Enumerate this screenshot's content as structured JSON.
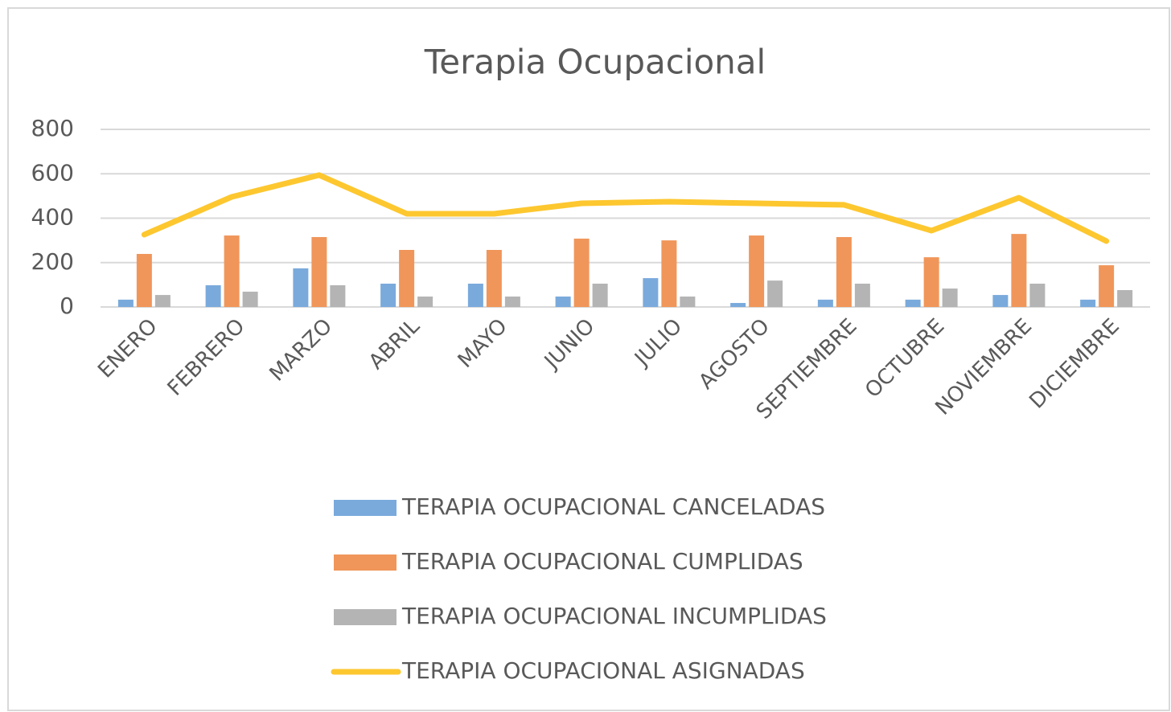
{
  "chart_data": {
    "type": "bar",
    "title": "Terapia Ocupacional",
    "categories": [
      "ENERO",
      "FEBRERO",
      "MARZO",
      "ABRIL",
      "MAYO",
      "JUNIO",
      "JULIO",
      "AGOSTO",
      "SEPTIEMBRE",
      "OCTUBRE",
      "NOVIEMBRE",
      "DICIEMBRE"
    ],
    "series": [
      {
        "name": "TERAPIA OCUPACIONAL CANCELADAS",
        "color": "#7aaadc",
        "values": [
          33,
          98,
          174,
          105,
          105,
          47,
          130,
          18,
          33,
          33,
          54,
          33
        ]
      },
      {
        "name": "TERAPIA OCUPACIONAL CUMPLIDAS",
        "color": "#f0965a",
        "values": [
          239,
          322,
          315,
          257,
          257,
          308,
          300,
          322,
          315,
          224,
          329,
          188
        ]
      },
      {
        "name": "TERAPIA OCUPACIONAL INCUMPLIDAS",
        "color": "#b4b4b4",
        "values": [
          54,
          69,
          98,
          47,
          47,
          105,
          47,
          119,
          105,
          83,
          105,
          76
        ]
      },
      {
        "name": "TERAPIA OCUPACIONAL ASIGNADAS",
        "color": "#fdc72f",
        "type": "line",
        "values": [
          326,
          496,
          594,
          420,
          420,
          467,
          474,
          467,
          460,
          344,
          492,
          297
        ]
      }
    ],
    "ylim": [
      0,
      800
    ],
    "yticks": [
      0,
      200,
      400,
      600,
      800
    ],
    "grid": true,
    "legend": "bottom"
  }
}
